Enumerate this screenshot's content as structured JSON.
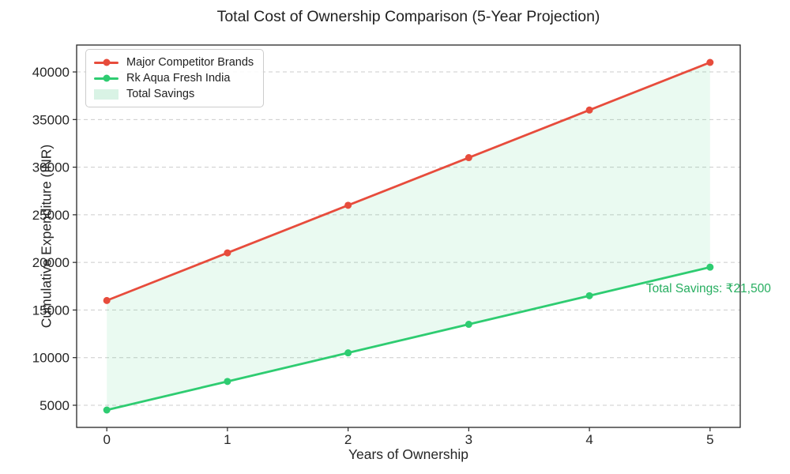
{
  "chart_data": {
    "type": "line",
    "title": "Total Cost of Ownership Comparison (5-Year Projection)",
    "xlabel": "Years of Ownership",
    "ylabel": "Cumulative Expenditure (INR)",
    "x": [
      0,
      1,
      2,
      3,
      4,
      5
    ],
    "series": [
      {
        "name": "Major Competitor Brands",
        "color": "#e74c3c",
        "values": [
          16000,
          21000,
          26000,
          31000,
          36000,
          41000
        ]
      },
      {
        "name": "Rk Aqua Fresh India",
        "color": "#2ecc71",
        "values": [
          4500,
          7500,
          10500,
          13500,
          16500,
          19500
        ]
      }
    ],
    "fill_between": {
      "label": "Total Savings",
      "upper_series": "Major Competitor Brands",
      "lower_series": "Rk Aqua Fresh India",
      "color": "#2ecc71",
      "opacity": 0.1
    },
    "legend": [
      {
        "label": "Major Competitor Brands",
        "type": "line",
        "color": "#e74c3c"
      },
      {
        "label": "Rk Aqua Fresh India",
        "type": "line",
        "color": "#2ecc71"
      },
      {
        "label": "Total Savings",
        "type": "patch",
        "color": "#d9f3e5"
      }
    ],
    "legend_position": "upper left",
    "annotation": {
      "text": "Total Savings: ₹21,500",
      "color": "#27ae60",
      "x": 4.47,
      "y": 17200
    },
    "xticks": [
      0,
      1,
      2,
      3,
      4,
      5
    ],
    "yticks": [
      5000,
      10000,
      15000,
      20000,
      25000,
      30000,
      35000,
      40000
    ],
    "xlim": [
      -0.25,
      5.25
    ],
    "ylim": [
      2675,
      42825
    ],
    "grid": {
      "axis": "y",
      "style": "dashed",
      "color": "#cccccc"
    },
    "spine_color": "#262626",
    "line_width": 2.8,
    "marker_radius": 4.5
  }
}
